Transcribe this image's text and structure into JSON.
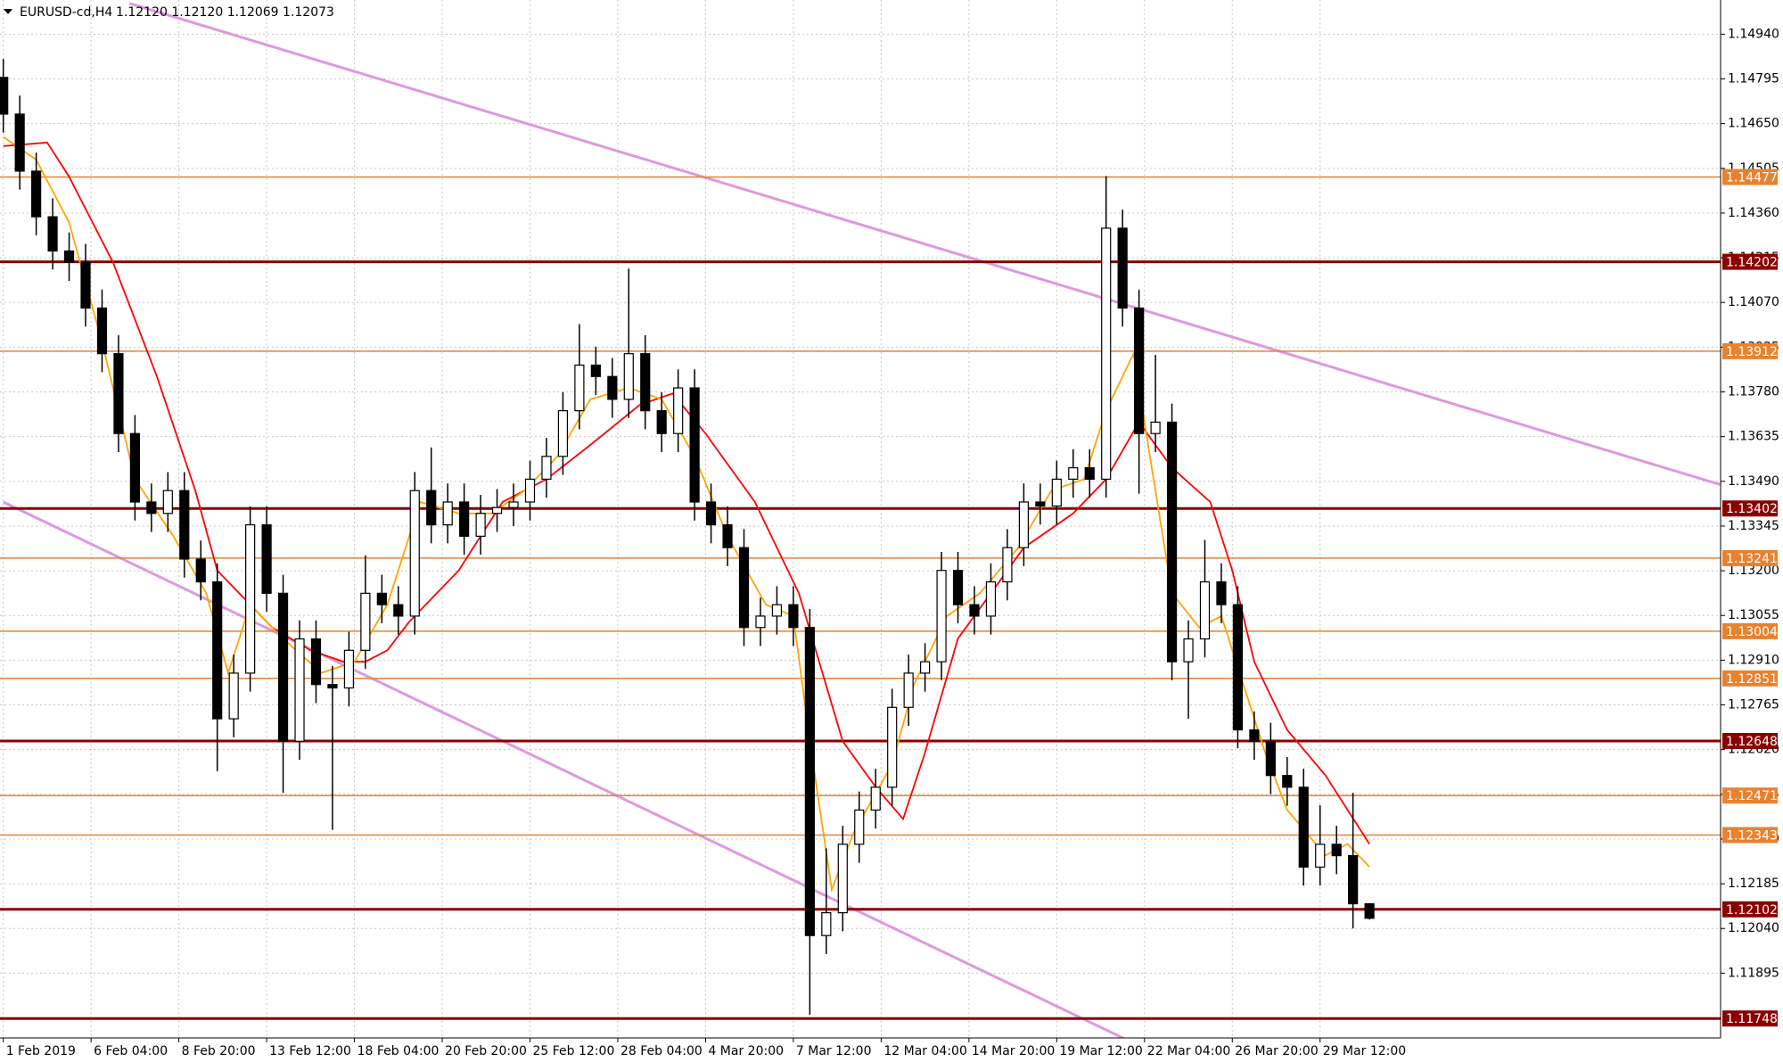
{
  "chart_data": {
    "type": "candlestick",
    "title": "EURUSD-cd,H4",
    "ohlc_text": "1.12120 1.12120 1.12069 1.12073",
    "x": [
      0,
      3,
      6,
      9,
      12,
      15,
      18,
      21,
      24,
      27,
      30,
      33,
      36,
      39,
      42,
      45,
      48,
      51,
      54,
      57,
      60,
      63,
      66,
      69,
      72,
      75,
      78,
      81,
      84,
      87,
      90,
      93,
      96,
      99,
      102,
      105,
      108,
      111,
      114,
      117,
      120,
      123,
      126,
      129,
      132,
      135,
      138,
      141,
      144,
      147,
      150,
      153,
      156,
      159,
      162,
      165,
      168,
      171,
      174,
      177,
      180,
      183,
      186,
      189,
      192,
      195,
      198,
      201,
      204,
      207,
      210,
      213,
      216,
      219,
      222,
      225,
      228,
      231,
      234,
      237,
      240,
      243,
      246,
      249
    ],
    "open": [
      1.148,
      1.14681,
      1.14496,
      1.14348,
      1.14237,
      1.142,
      1.14052,
      1.13904,
      1.13645,
      1.13423,
      1.13386,
      1.1346,
      1.13238,
      1.13164,
      1.1272,
      1.12868,
      1.13349,
      1.13127,
      1.12647,
      1.12979,
      1.12831,
      1.1282,
      1.12942,
      1.13127,
      1.1309,
      1.13053,
      1.1346,
      1.13349,
      1.13423,
      1.13312,
      1.13386,
      1.13405,
      1.13423,
      1.13497,
      1.13571,
      1.13719,
      1.13867,
      1.1383,
      1.13756,
      1.13904,
      1.13719,
      1.13645,
      1.13793,
      1.13423,
      1.13349,
      1.13275,
      1.13016,
      1.13053,
      1.1309,
      1.13016,
      1.12017,
      1.12091,
      1.12313,
      1.12424,
      1.12498,
      1.12757,
      1.12868,
      1.12905,
      1.13201,
      1.1309,
      1.13053,
      1.13164,
      1.13275,
      1.13423,
      1.1341,
      1.13497,
      1.13534,
      1.13497,
      1.14311,
      1.14052,
      1.13645,
      1.13682,
      1.12905,
      1.12979,
      1.13164,
      1.1309,
      1.12684,
      1.12647,
      1.12536,
      1.12498,
      1.12239,
      1.12313,
      1.12276,
      1.1212
    ],
    "high": [
      1.1486,
      1.14741,
      1.14556,
      1.14408,
      1.14297,
      1.1426,
      1.14112,
      1.13964,
      1.13705,
      1.13483,
      1.1352,
      1.1352,
      1.13298,
      1.13224,
      1.12928,
      1.13409,
      1.13409,
      1.13187,
      1.13039,
      1.13039,
      1.12891,
      1.13002,
      1.1325,
      1.13187,
      1.1315,
      1.1352,
      1.136,
      1.13483,
      1.13483,
      1.13446,
      1.13465,
      1.13483,
      1.13557,
      1.13631,
      1.13779,
      1.14,
      1.13927,
      1.1389,
      1.1418,
      1.13964,
      1.13779,
      1.13853,
      1.13853,
      1.13483,
      1.13409,
      1.13335,
      1.13113,
      1.1315,
      1.1315,
      1.13076,
      1.123,
      1.12373,
      1.12484,
      1.12558,
      1.12817,
      1.12928,
      1.12965,
      1.13261,
      1.13261,
      1.1315,
      1.13224,
      1.13335,
      1.13483,
      1.13483,
      1.13557,
      1.13594,
      1.13594,
      1.1448,
      1.14371,
      1.14112,
      1.139,
      1.13742,
      1.13039,
      1.133,
      1.13224,
      1.1315,
      1.12744,
      1.12707,
      1.12596,
      1.12558,
      1.1244,
      1.12373,
      1.1248,
      1.1212
    ],
    "low": [
      1.14621,
      1.14436,
      1.14288,
      1.14177,
      1.1414,
      1.13992,
      1.13844,
      1.13585,
      1.13363,
      1.13326,
      1.13326,
      1.13178,
      1.13104,
      1.1255,
      1.1266,
      1.12808,
      1.13067,
      1.1248,
      1.12587,
      1.12771,
      1.1236,
      1.1276,
      1.12882,
      1.1303,
      1.12993,
      1.12993,
      1.13289,
      1.13289,
      1.13252,
      1.13252,
      1.13326,
      1.13345,
      1.13363,
      1.13437,
      1.13511,
      1.13659,
      1.1377,
      1.13696,
      1.13696,
      1.13659,
      1.13585,
      1.13585,
      1.13363,
      1.13289,
      1.13215,
      1.12956,
      1.12956,
      1.12993,
      1.12956,
      1.1176,
      1.11957,
      1.12031,
      1.12253,
      1.12364,
      1.12438,
      1.12697,
      1.12808,
      1.12845,
      1.1303,
      1.12993,
      1.12993,
      1.13104,
      1.13215,
      1.1335,
      1.1335,
      1.13437,
      1.13437,
      1.13437,
      1.13992,
      1.1345,
      1.13585,
      1.12845,
      1.1272,
      1.12919,
      1.1303,
      1.12624,
      1.12587,
      1.12476,
      1.12438,
      1.12179,
      1.12179,
      1.12216,
      1.1204,
      1.12069
    ],
    "close": [
      1.14681,
      1.14496,
      1.14348,
      1.14237,
      1.142,
      1.14052,
      1.13904,
      1.13645,
      1.13423,
      1.13386,
      1.1346,
      1.13238,
      1.13164,
      1.1272,
      1.12868,
      1.13349,
      1.13127,
      1.12647,
      1.12979,
      1.12831,
      1.1282,
      1.12942,
      1.13127,
      1.1309,
      1.13053,
      1.1346,
      1.13349,
      1.13423,
      1.13312,
      1.13386,
      1.13405,
      1.13423,
      1.13497,
      1.13571,
      1.13719,
      1.13867,
      1.1383,
      1.13756,
      1.13904,
      1.13719,
      1.13645,
      1.13793,
      1.13423,
      1.13349,
      1.13275,
      1.13016,
      1.13053,
      1.1309,
      1.13016,
      1.12017,
      1.12091,
      1.12313,
      1.12424,
      1.12498,
      1.12757,
      1.12868,
      1.12905,
      1.13201,
      1.1309,
      1.13053,
      1.13164,
      1.13275,
      1.13423,
      1.1341,
      1.13497,
      1.13534,
      1.13497,
      1.14311,
      1.14052,
      1.13645,
      1.13682,
      1.12905,
      1.12979,
      1.13164,
      1.1309,
      1.12684,
      1.12647,
      1.12536,
      1.12498,
      1.12239,
      1.12313,
      1.12276,
      1.1212,
      1.12073
    ],
    "up_color": "#ffffff",
    "down_color": "#000000",
    "xlim": [
      -0.6,
      313
    ],
    "ylim": [
      1.11685,
      1.15051
    ],
    "xticks": [
      {
        "value": 0,
        "label": "1 Feb 2019"
      },
      {
        "value": 16,
        "label": "6 Feb 04:00"
      },
      {
        "value": 32,
        "label": "8 Feb 20:00"
      },
      {
        "value": 48,
        "label": "13 Feb 12:00"
      },
      {
        "value": 64,
        "label": "18 Feb 04:00"
      },
      {
        "value": 80,
        "label": "20 Feb 20:00"
      },
      {
        "value": 96,
        "label": "25 Feb 12:00"
      },
      {
        "value": 112,
        "label": "28 Feb 04:00"
      },
      {
        "value": 128,
        "label": "4 Mar 20:00"
      },
      {
        "value": 144,
        "label": "7 Mar 12:00"
      },
      {
        "value": 160,
        "label": "12 Mar 04:00"
      },
      {
        "value": 176,
        "label": "14 Mar 20:00"
      },
      {
        "value": 192,
        "label": "19 Mar 12:00"
      },
      {
        "value": 208,
        "label": "22 Mar 04:00"
      },
      {
        "value": 224,
        "label": "26 Mar 20:00"
      },
      {
        "value": 240,
        "label": "29 Mar 12:00"
      }
    ],
    "yticks": [
      {
        "value": 1.1494,
        "label": "1.14940"
      },
      1.14795,
      {
        "value": 1.1465,
        "label": "1.14650"
      },
      1.14505,
      {
        "value": 1.1436,
        "label": "1.14360"
      },
      1.14215,
      {
        "value": 1.1407,
        "label": "1.14070"
      },
      1.13925,
      {
        "value": 1.1378,
        "label": "1.13780"
      },
      1.13635,
      {
        "value": 1.1349,
        "label": "1.13490"
      },
      1.13345,
      {
        "value": 1.132,
        "label": "1.13200"
      },
      1.13055,
      {
        "value": 1.1291,
        "label": "1.12910"
      },
      1.12765,
      {
        "value": 1.1262,
        "label": "1.12620"
      },
      1.12475,
      {
        "value": 1.1233,
        "label": "1.12330"
      },
      1.12185,
      {
        "value": 1.1204,
        "label": "1.12040"
      },
      1.11895
    ],
    "grid": true,
    "moving_averages": [
      {
        "color": "#ff0000",
        "x": [
          0,
          8,
          12,
          20,
          28,
          35,
          39,
          43,
          49,
          56,
          62,
          66,
          70,
          74,
          83,
          91,
          99,
          107,
          116,
          122,
          128,
          137,
          145,
          153,
          159,
          164,
          168,
          174,
          180,
          186,
          195,
          201,
          207,
          213,
          220,
          224,
          228,
          234,
          241,
          249
        ],
        "values": [
          1.14577,
          1.14589,
          1.14478,
          1.142,
          1.1383,
          1.1346,
          1.13201,
          1.13127,
          1.13016,
          1.12942,
          1.12905,
          1.12905,
          1.12942,
          1.13035,
          1.13201,
          1.13423,
          1.13497,
          1.13608,
          1.13738,
          1.13775,
          1.13645,
          1.13423,
          1.13127,
          1.12647,
          1.12499,
          1.12395,
          1.1261,
          1.1298,
          1.13127,
          1.13275,
          1.13386,
          1.13497,
          1.13682,
          1.13534,
          1.13423,
          1.13201,
          1.12905,
          1.12684,
          1.12536,
          1.12314
        ]
      },
      {
        "color": "#ffa500",
        "x": [
          0,
          6,
          12,
          18,
          24,
          31,
          37,
          41,
          45,
          51,
          58,
          64,
          70,
          76,
          83,
          89,
          95,
          101,
          107,
          114,
          120,
          126,
          132,
          139,
          144,
          147,
          151,
          155,
          162,
          166,
          172,
          178,
          185,
          191,
          197,
          201,
          206,
          209,
          213,
          218,
          222,
          226,
          230,
          234,
          241,
          245,
          249
        ],
        "values": [
          1.14607,
          1.14533,
          1.1433,
          1.13941,
          1.13497,
          1.13312,
          1.13127,
          1.12869,
          1.1309,
          1.1298,
          1.12869,
          1.12905,
          1.1309,
          1.13423,
          1.13386,
          1.13386,
          1.1346,
          1.13571,
          1.13756,
          1.13793,
          1.13756,
          1.13571,
          1.13312,
          1.1309,
          1.13053,
          1.12647,
          1.12166,
          1.12351,
          1.12573,
          1.12832,
          1.13053,
          1.13127,
          1.13275,
          1.1346,
          1.13497,
          1.13719,
          1.13904,
          1.13571,
          1.13127,
          1.13016,
          1.13053,
          1.12832,
          1.1261,
          1.12425,
          1.12277,
          1.12314,
          1.1224
        ]
      }
    ],
    "levels": [
      {
        "value": 1.14477,
        "color": "#e8822f"
      },
      {
        "value": 1.14202,
        "color": "#8b0000"
      },
      {
        "value": 1.13912,
        "color": "#e8822f"
      },
      {
        "value": 1.13402,
        "color": "#8b0000"
      },
      {
        "value": 1.13241,
        "color": "#e8822f"
      },
      {
        "value": 1.13004,
        "color": "#e8822f"
      },
      {
        "value": 1.12851,
        "color": "#e8822f"
      },
      {
        "value": 1.12648,
        "color": "#8b0000"
      },
      {
        "value": 1.12471,
        "color": "#e8822f"
      },
      {
        "value": 1.12343,
        "color": "#e8822f"
      },
      {
        "value": 1.12102,
        "color": "#8b0000"
      },
      {
        "value": 1.11748,
        "color": "#8b0000"
      }
    ],
    "trendlines": [
      {
        "color": "#dd99dd",
        "x": [
          23,
          313
        ],
        "y": [
          1.1504,
          1.13479
        ]
      },
      {
        "color": "#dd99dd",
        "x": [
          0,
          205
        ],
        "y": [
          1.13423,
          1.11677
        ]
      }
    ]
  }
}
